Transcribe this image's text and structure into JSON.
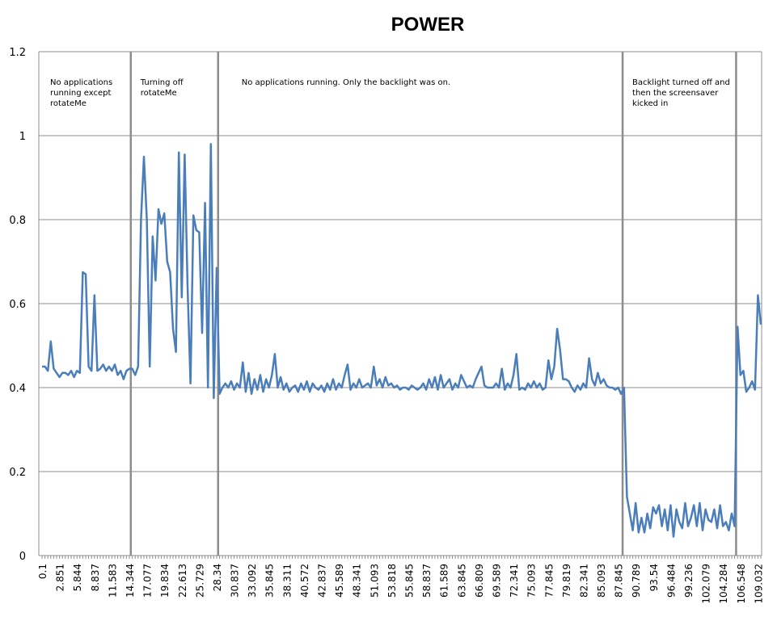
{
  "chart_data": {
    "type": "line",
    "title": "POWER",
    "xlabel": "",
    "ylabel": "",
    "ylim": [
      0,
      1.2
    ],
    "yticks": [
      "0",
      "0.2",
      "0.4",
      "0.6",
      "0.8",
      "1",
      "1.2"
    ],
    "ytick_values": [
      0,
      0.2,
      0.4,
      0.6,
      0.8,
      1.0,
      1.2
    ],
    "grid": true,
    "legend": "none",
    "xtick_every": 6,
    "xtick_labels": [
      "0.1",
      "2.851",
      "5.844",
      "8.837",
      "11.583",
      "14.344",
      "17.077",
      "19.834",
      "22.613",
      "25.729",
      "28.34",
      "30.837",
      "33.092",
      "35.845",
      "38.311",
      "40.572",
      "42.837",
      "45.589",
      "48.341",
      "51.093",
      "53.818",
      "55.845",
      "58.837",
      "61.589",
      "63.845",
      "66.809",
      "69.589",
      "72.341",
      "75.093",
      "77.845",
      "79.819",
      "82.341",
      "85.093",
      "87.845",
      "90.789",
      "93.54",
      "96.484",
      "99.236",
      "102.079",
      "104.284",
      "106.548",
      "109.032"
    ],
    "series": [
      {
        "name": "Power",
        "color": "#4a7ebb",
        "values": [
          0.45,
          0.45,
          0.44,
          0.51,
          0.445,
          0.435,
          0.425,
          0.435,
          0.435,
          0.43,
          0.44,
          0.425,
          0.44,
          0.435,
          0.675,
          0.67,
          0.45,
          0.44,
          0.62,
          0.44,
          0.445,
          0.455,
          0.44,
          0.45,
          0.44,
          0.455,
          0.43,
          0.44,
          0.42,
          0.44,
          0.445,
          0.445,
          0.43,
          0.45,
          0.8,
          0.95,
          0.8,
          0.45,
          0.76,
          0.655,
          0.825,
          0.79,
          0.815,
          0.7,
          0.675,
          0.54,
          0.485,
          0.96,
          0.615,
          0.955,
          0.64,
          0.41,
          0.81,
          0.775,
          0.77,
          0.53,
          0.84,
          0.4,
          0.98,
          0.375,
          0.685,
          0.385,
          0.4,
          0.41,
          0.4,
          0.415,
          0.395,
          0.41,
          0.4,
          0.46,
          0.39,
          0.435,
          0.385,
          0.42,
          0.395,
          0.43,
          0.39,
          0.42,
          0.4,
          0.43,
          0.48,
          0.4,
          0.425,
          0.395,
          0.41,
          0.39,
          0.4,
          0.405,
          0.39,
          0.41,
          0.395,
          0.415,
          0.39,
          0.41,
          0.4,
          0.395,
          0.405,
          0.39,
          0.41,
          0.395,
          0.42,
          0.395,
          0.41,
          0.4,
          0.43,
          0.455,
          0.395,
          0.41,
          0.4,
          0.42,
          0.4,
          0.405,
          0.41,
          0.4,
          0.45,
          0.405,
          0.42,
          0.4,
          0.425,
          0.405,
          0.41,
          0.4,
          0.405,
          0.395,
          0.4,
          0.4,
          0.395,
          0.405,
          0.4,
          0.395,
          0.4,
          0.41,
          0.395,
          0.42,
          0.4,
          0.425,
          0.395,
          0.43,
          0.4,
          0.41,
          0.42,
          0.395,
          0.41,
          0.4,
          0.43,
          0.415,
          0.4,
          0.405,
          0.4,
          0.42,
          0.435,
          0.45,
          0.405,
          0.4,
          0.4,
          0.4,
          0.41,
          0.4,
          0.445,
          0.395,
          0.41,
          0.4,
          0.43,
          0.48,
          0.395,
          0.4,
          0.395,
          0.41,
          0.4,
          0.415,
          0.4,
          0.41,
          0.395,
          0.4,
          0.465,
          0.42,
          0.45,
          0.54,
          0.49,
          0.42,
          0.42,
          0.415,
          0.4,
          0.39,
          0.405,
          0.395,
          0.41,
          0.4,
          0.47,
          0.42,
          0.405,
          0.435,
          0.41,
          0.42,
          0.405,
          0.4,
          0.4,
          0.395,
          0.4,
          0.385,
          0.4,
          0.14,
          0.1,
          0.06,
          0.125,
          0.055,
          0.09,
          0.055,
          0.1,
          0.065,
          0.115,
          0.1,
          0.12,
          0.07,
          0.11,
          0.06,
          0.12,
          0.045,
          0.11,
          0.08,
          0.065,
          0.125,
          0.07,
          0.09,
          0.12,
          0.07,
          0.125,
          0.06,
          0.11,
          0.085,
          0.08,
          0.11,
          0.065,
          0.12,
          0.07,
          0.08,
          0.06,
          0.1,
          0.07,
          0.545,
          0.43,
          0.44,
          0.39,
          0.4,
          0.415,
          0.395,
          0.62,
          0.55
        ]
      }
    ],
    "annotations": [
      {
        "text_lines": [
          "No applications",
          "running except",
          "rotateMe"
        ],
        "segment_start_index": 0,
        "divider_index": 30.5
      },
      {
        "text_lines": [
          "Turning off",
          "rotateMe"
        ],
        "segment_start_index": 30.5,
        "divider_index": 60.5
      },
      {
        "text_lines": [
          "No applications running. Only the backlight was on."
        ],
        "segment_start_index": 60.5,
        "divider_index": 199.5
      },
      {
        "text_lines": [
          "Backlight turned off and",
          "then the screensaver",
          "kicked in"
        ],
        "segment_start_index": 199.5,
        "divider_index": 238.5
      }
    ]
  }
}
